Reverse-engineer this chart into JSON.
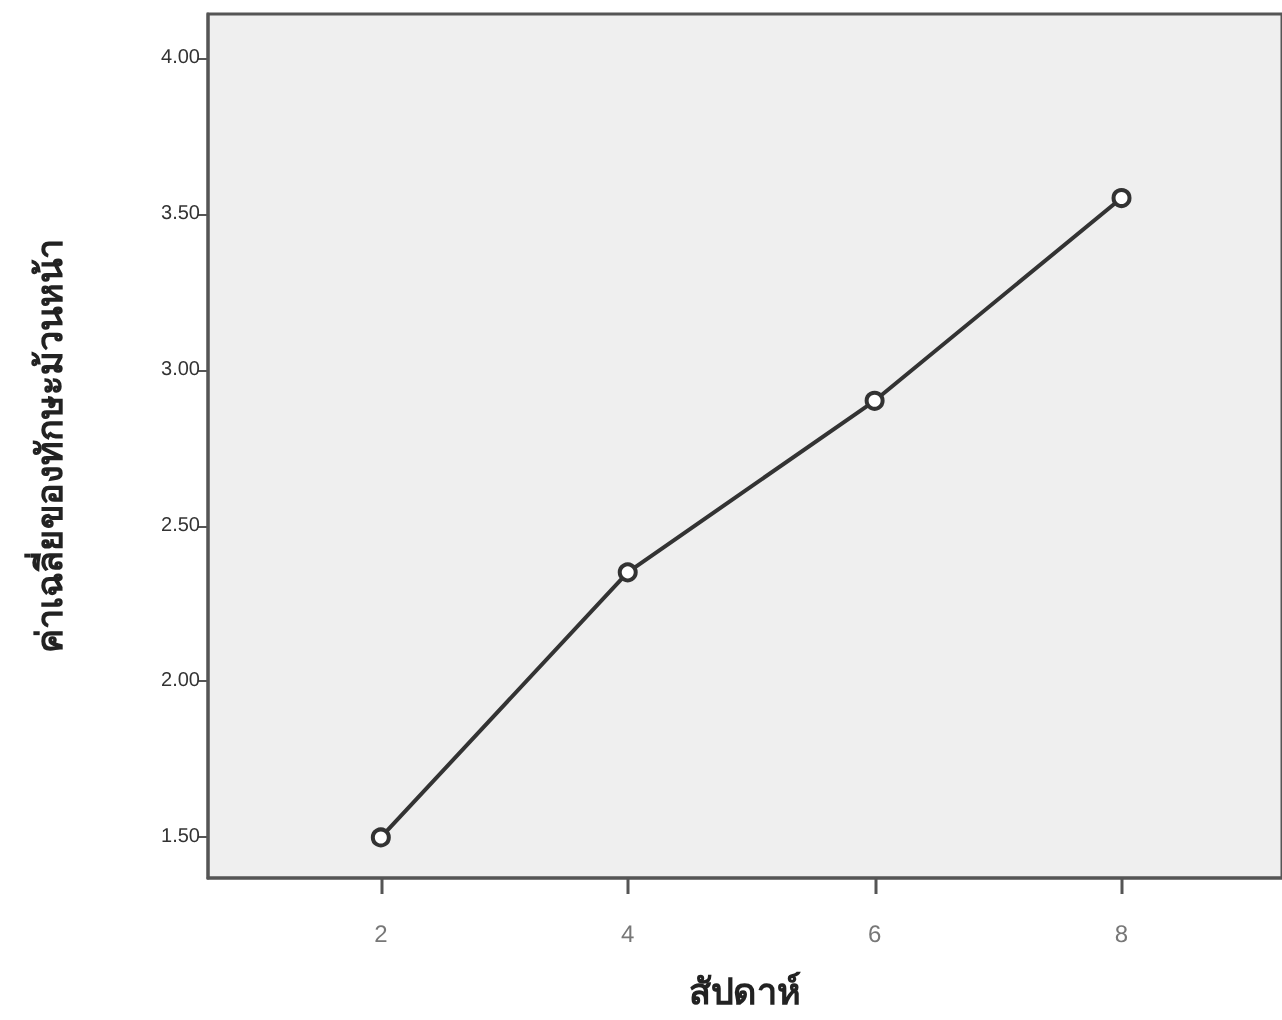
{
  "chart_data": {
    "type": "line",
    "xlabel": "สัปดาห์",
    "ylabel": "ค่าเฉลี่ยของทักษะม้วนหน้า",
    "x": [
      2,
      4,
      6,
      8
    ],
    "series": [
      {
        "color": "#333333",
        "values": [
          1.5,
          2.35,
          2.9,
          3.55
        ]
      }
    ],
    "xlim": [
      0.6,
      9.3
    ],
    "xticks": [
      2,
      4,
      6,
      8
    ],
    "ylim": [
      1.37,
      4.14
    ],
    "yticks": [
      {
        "value": 1.5,
        "label": "1.50"
      },
      {
        "value": 2,
        "label": "2.00"
      },
      {
        "value": 2.5,
        "label": "2.50"
      },
      {
        "value": 3,
        "label": "3.00"
      },
      {
        "value": 3.5,
        "label": "3.50"
      },
      {
        "value": 4,
        "label": "4.00"
      }
    ],
    "marker": "circle",
    "line_style": "solid"
  }
}
